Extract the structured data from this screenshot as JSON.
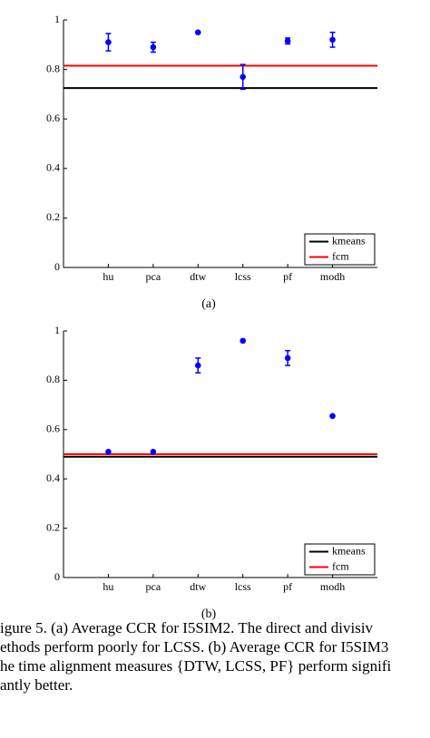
{
  "chart_data": [
    {
      "type": "scatter",
      "subcaption": "(a)",
      "categories": [
        "hu",
        "pca",
        "dtw",
        "lcss",
        "pf",
        "modh"
      ],
      "series": [
        {
          "color": "#0000ff",
          "values": [
            0.91,
            0.89,
            0.95,
            0.77,
            0.915,
            0.92
          ],
          "errors": [
            0.035,
            0.02,
            null,
            0.05,
            0.012,
            0.03
          ]
        }
      ],
      "reference_lines": [
        {
          "name": "kmeans",
          "color": "#000000",
          "value": 0.725
        },
        {
          "name": "fcm",
          "color": "#ff0000",
          "value": 0.815
        }
      ],
      "ylim": [
        0,
        1
      ],
      "yticks": [
        0,
        0.2,
        0.4,
        0.6,
        0.8,
        1
      ],
      "legend": "lower right"
    },
    {
      "type": "scatter",
      "subcaption": "(b)",
      "categories": [
        "hu",
        "pca",
        "dtw",
        "lcss",
        "pf",
        "modh"
      ],
      "series": [
        {
          "color": "#0000ff",
          "values": [
            0.51,
            0.51,
            0.86,
            0.96,
            0.89,
            0.655
          ],
          "errors": [
            null,
            null,
            0.03,
            null,
            0.03,
            null
          ]
        }
      ],
      "reference_lines": [
        {
          "name": "kmeans",
          "color": "#000000",
          "value": 0.49
        },
        {
          "name": "fcm",
          "color": "#ff0000",
          "value": 0.5
        }
      ],
      "ylim": [
        0,
        1
      ],
      "yticks": [
        0,
        0.2,
        0.4,
        0.6,
        0.8,
        1
      ],
      "legend": "lower right"
    }
  ],
  "caption": [
    "igure 5. (a) Average CCR for I5SIM2.  The direct and divisiv",
    "ethods perform poorly for LCSS. (b) Average CCR for I5SIM3",
    "he time alignment measures {DTW, LCSS, PF} perform signifi",
    "antly better."
  ]
}
